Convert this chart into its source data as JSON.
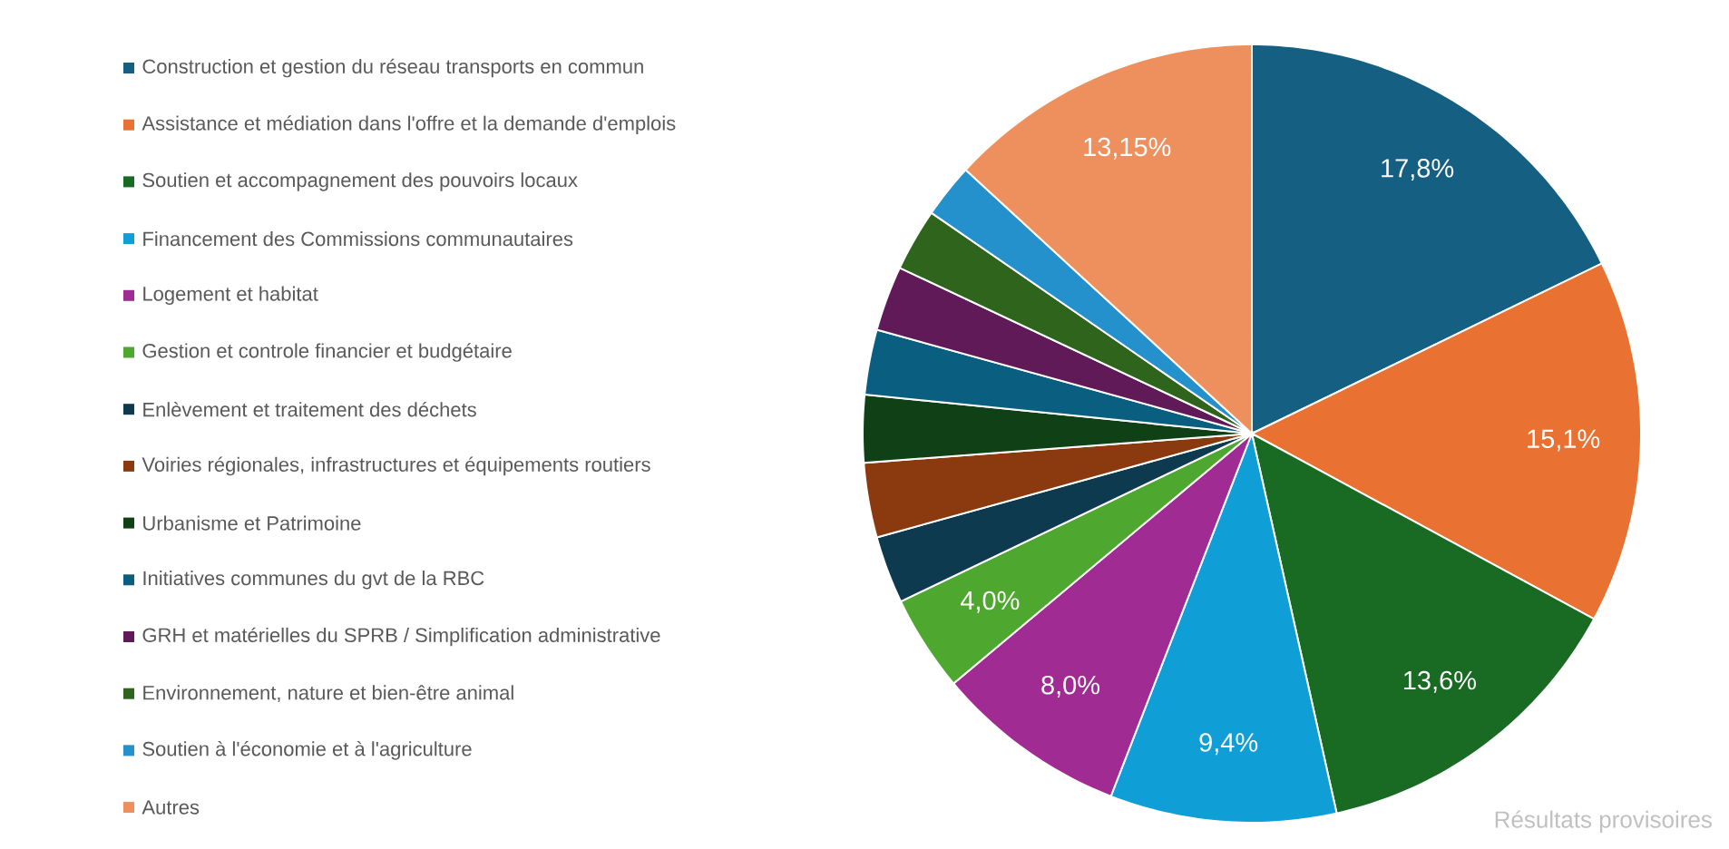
{
  "chart_data": {
    "type": "pie",
    "categories": [
      "Construction et gestion du réseau transports en commun",
      "Assistance et médiation dans l'offre et la demande d'emplois",
      "Soutien et accompagnement des pouvoirs locaux",
      "Financement des Commissions communautaires",
      "Logement et habitat",
      "Gestion et controle financier et budgétaire",
      "Enlèvement et traitement des déchets",
      "Voiries régionales, infrastructures et équipements routiers",
      "Urbanisme et Patrimoine",
      "Initiatives communes du gvt de la RBC",
      "GRH et matérielles du SPRB / Simplification administrative",
      "Environnement, nature et  bien-être animal",
      "Soutien à l'économie et à l'agriculture",
      "Autres"
    ],
    "values": [
      17.8,
      15.1,
      13.6,
      9.4,
      8.0,
      4.0,
      2.8,
      3.1,
      2.8,
      2.7,
      2.7,
      2.6,
      2.25,
      13.15
    ],
    "value_labels": [
      "17,8%",
      "15,1%",
      "13,6%",
      "9,4%",
      "8,0%",
      "4,0%",
      null,
      null,
      null,
      null,
      null,
      null,
      null,
      "13,15%"
    ],
    "colors": [
      "#156082",
      "#e97132",
      "#196b24",
      "#0f9ed5",
      "#a02b93",
      "#4ea72e",
      "#0d3a4e",
      "#8b3a0f",
      "#0f4016",
      "#0a5f80",
      "#601a58",
      "#2f641c",
      "#2591cc",
      "#ee8f5e"
    ],
    "legend": "left",
    "annotations": [
      "Résultats provisoires"
    ]
  }
}
